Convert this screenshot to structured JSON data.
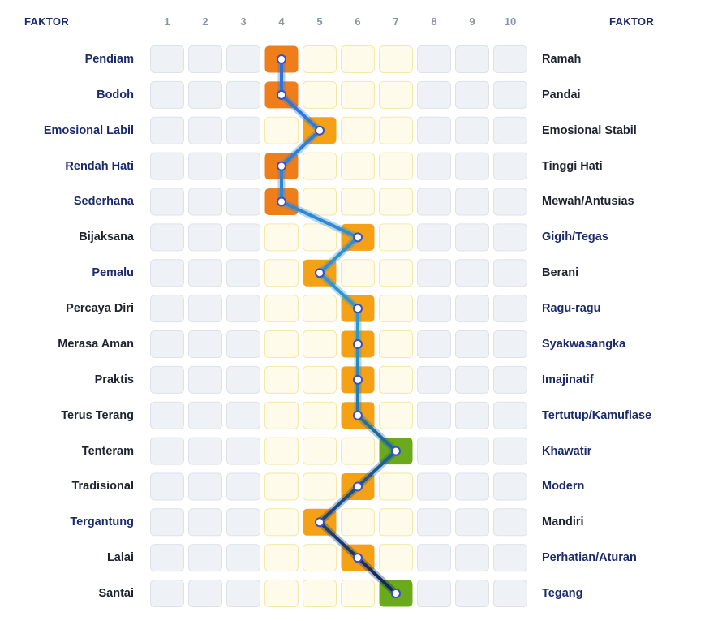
{
  "header": {
    "left_title": "FAKTOR",
    "right_title": "FAKTOR"
  },
  "colors": {
    "cell_empty": "#eef1f6",
    "cell_empty_border": "#dde2ea",
    "cell_band": "#fffbea",
    "cell_band_border": "#f6e7a6",
    "high_orange_dark": "#ef7d1a",
    "high_orange": "#f5a116",
    "high_green": "#6aaa1c",
    "line_start": "#2f6fe0",
    "line_mid": "#2a9bd0",
    "line_end": "#10245a",
    "label_navy": "#1b2a6b",
    "label_dark": "#1f2330"
  },
  "chart_data": {
    "type": "scatter",
    "columns": [
      "1",
      "2",
      "3",
      "4",
      "5",
      "6",
      "7",
      "8",
      "9",
      "10"
    ],
    "band_range": [
      4,
      7
    ],
    "rows": [
      {
        "left": "Pendiam",
        "right": "Ramah",
        "value": 4,
        "left_color": "navy",
        "right_color": "dark"
      },
      {
        "left": "Bodoh",
        "right": "Pandai",
        "value": 4,
        "left_color": "navy",
        "right_color": "dark"
      },
      {
        "left": "Emosional Labil",
        "right": "Emosional Stabil",
        "value": 5,
        "left_color": "navy",
        "right_color": "dark"
      },
      {
        "left": "Rendah Hati",
        "right": "Tinggi Hati",
        "value": 4,
        "left_color": "navy",
        "right_color": "dark"
      },
      {
        "left": "Sederhana",
        "right": "Mewah/Antusias",
        "value": 4,
        "left_color": "navy",
        "right_color": "dark"
      },
      {
        "left": "Bijaksana",
        "right": "Gigih/Tegas",
        "value": 6,
        "left_color": "dark",
        "right_color": "navy"
      },
      {
        "left": "Pemalu",
        "right": "Berani",
        "value": 5,
        "left_color": "navy",
        "right_color": "dark"
      },
      {
        "left": "Percaya Diri",
        "right": "Ragu-ragu",
        "value": 6,
        "left_color": "dark",
        "right_color": "navy"
      },
      {
        "left": "Merasa Aman",
        "right": "Syakwasangka",
        "value": 6,
        "left_color": "dark",
        "right_color": "navy"
      },
      {
        "left": "Praktis",
        "right": "Imajinatif",
        "value": 6,
        "left_color": "dark",
        "right_color": "navy"
      },
      {
        "left": "Terus Terang",
        "right": "Tertutup/Kamuflase",
        "value": 6,
        "left_color": "dark",
        "right_color": "navy"
      },
      {
        "left": "Tenteram",
        "right": "Khawatir",
        "value": 7,
        "left_color": "dark",
        "right_color": "navy"
      },
      {
        "left": "Tradisional",
        "right": "Modern",
        "value": 6,
        "left_color": "dark",
        "right_color": "navy"
      },
      {
        "left": "Tergantung",
        "right": "Mandiri",
        "value": 5,
        "left_color": "navy",
        "right_color": "dark"
      },
      {
        "left": "Lalai",
        "right": "Perhatian/Aturan",
        "value": 6,
        "left_color": "dark",
        "right_color": "navy"
      },
      {
        "left": "Santai",
        "right": "Tegang",
        "value": 7,
        "left_color": "dark",
        "right_color": "navy"
      }
    ]
  }
}
